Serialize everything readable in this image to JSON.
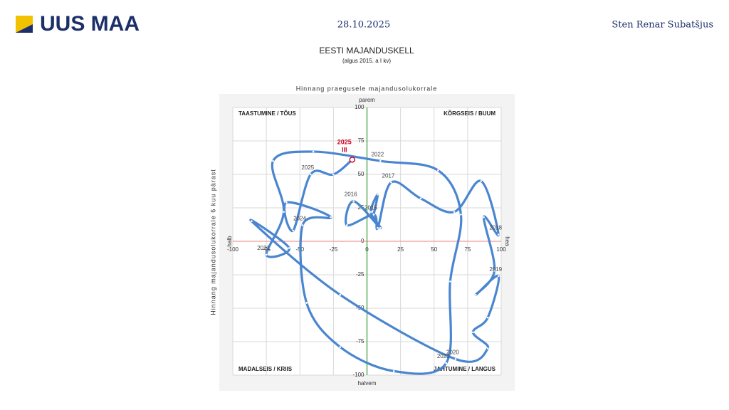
{
  "header": {
    "logo": "UUS MAA",
    "date": "28.10.2025",
    "author": "Sten Renar Subatšjus"
  },
  "chart_data": {
    "type": "line",
    "title": "EESTI MAJANDUSKELL",
    "subtitle": "(algus 2015. a I kv)",
    "x_label": "Hinnang praegusele majandusolukorrale",
    "y_label": "Hinnang majandusolukorrale 6 kuu pärast",
    "axis_end_labels": {
      "top": "parem",
      "bottom": "halvem",
      "left": "halb",
      "right": "hea"
    },
    "quadrant_labels": {
      "top_left": "TAASTUMINE / TÕUS",
      "top_right": "KÕRGSEIS / BUUM",
      "bottom_left": "MADALSEIS / KRIIS",
      "bottom_right": "JAHTUMINE / LANGUS"
    },
    "xlim": [
      -100,
      100
    ],
    "ylim": [
      -100,
      100
    ],
    "xticks": [
      -100,
      -75,
      -50,
      -25,
      0,
      25,
      50,
      75,
      100
    ],
    "yticks": [
      -100,
      -75,
      -50,
      -25,
      0,
      25,
      50,
      75,
      100
    ],
    "grid": true,
    "series": [
      {
        "color": "#4a86d0",
        "x": [
          5,
          8,
          3,
          10,
          -10,
          -15,
          5,
          8,
          18,
          40,
          65,
          85,
          98,
          87,
          95,
          81,
          98,
          90,
          79,
          90,
          66,
          -20,
          -86,
          -58,
          -75,
          -62,
          -70,
          -40,
          10,
          53,
          70,
          62,
          59,
          20,
          -20,
          -45,
          -48,
          -27,
          -60,
          -55,
          -42,
          -25,
          -11
        ],
        "values": [
          20,
          35,
          22,
          10,
          30,
          12,
          20,
          10,
          44,
          32,
          22,
          45,
          5,
          18,
          -22,
          -40,
          -26,
          -57,
          -68,
          -80,
          -88,
          -40,
          15,
          -5,
          -10,
          22,
          60,
          67,
          60,
          53,
          20,
          -30,
          -91,
          -97,
          -79,
          -46,
          12,
          18,
          29,
          8,
          50,
          50,
          61
        ],
        "point_labels": [
          "2015",
          null,
          null,
          null,
          "2016",
          null,
          null,
          null,
          "2017",
          null,
          null,
          null,
          "2018",
          null,
          null,
          null,
          "2019",
          null,
          null,
          null,
          "2020",
          null,
          null,
          null,
          "2021",
          null,
          null,
          null,
          "2022",
          null,
          null,
          null,
          "2023",
          null,
          null,
          null,
          "2024",
          null,
          null,
          null,
          "2025",
          null,
          null
        ]
      }
    ],
    "last_point_label": [
      "2025",
      "III"
    ],
    "last_point_color": "#d0021b"
  }
}
